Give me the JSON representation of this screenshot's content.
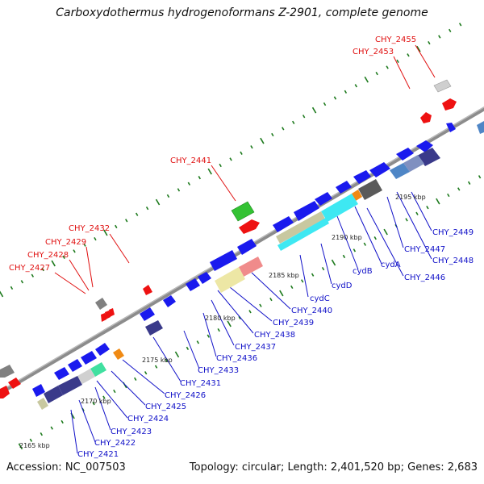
{
  "title": "Carboxydothermus hydrogenoformans Z-2901, complete genome",
  "accession": "Accession: NC_007503",
  "summary": "Topology: circular; Length: 2,401,520 bp; Genes: 2,683",
  "colors": {
    "backbone": "#8a8a8a",
    "forward_gene": "#1a1aee",
    "reverse_gene": "#ee1111",
    "tick": "#1d7a1d",
    "label_red": "#e01010",
    "label_blue": "#1010c8"
  },
  "kbp_labels": [
    "2165 kbp",
    "2170 kbp",
    "2175 kbp",
    "2180 kbp",
    "2185 kbp",
    "2190 kbp",
    "2195 kbp"
  ],
  "red_labels": [
    "CHY_2455",
    "CHY_2453",
    "CHY_2441",
    "CHY_2432",
    "CHY_2429",
    "CHY_2428",
    "CHY_2427"
  ],
  "blue_labels": [
    "CHY_2449",
    "CHY_2447",
    "CHY_2448",
    "CHY_2446",
    "cydA",
    "cydB",
    "cydD",
    "cydC",
    "CHY_2440",
    "CHY_2439",
    "CHY_2438",
    "CHY_2437",
    "CHY_2436",
    "CHY_2433",
    "CHY_2431",
    "CHY_2426",
    "CHY_2425",
    "CHY_2424",
    "CHY_2423",
    "CHY_2422",
    "CHY_2421"
  ]
}
